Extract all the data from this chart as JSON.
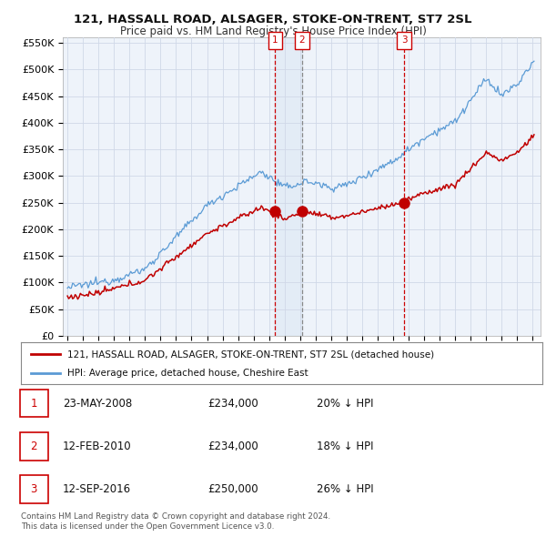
{
  "title": "121, HASSALL ROAD, ALSAGER, STOKE-ON-TRENT, ST7 2SL",
  "subtitle": "Price paid vs. HM Land Registry's House Price Index (HPI)",
  "ylim": [
    0,
    560000
  ],
  "yticks": [
    0,
    50000,
    100000,
    150000,
    200000,
    250000,
    300000,
    350000,
    400000,
    450000,
    500000,
    550000
  ],
  "ytick_labels": [
    "£0",
    "£50K",
    "£100K",
    "£150K",
    "£200K",
    "£250K",
    "£300K",
    "£350K",
    "£400K",
    "£450K",
    "£500K",
    "£550K"
  ],
  "hpi_color": "#5b9bd5",
  "price_color": "#c00000",
  "grid_color": "#d0d8e8",
  "background_color": "#ffffff",
  "chart_bg": "#eef3fa",
  "shade_color": "#d0e0f0",
  "sale_dates": [
    2008.39,
    2010.12,
    2016.71
  ],
  "sale_prices": [
    234000,
    234000,
    250000
  ],
  "sale_labels": [
    "1",
    "2",
    "3"
  ],
  "legend_entries": [
    "121, HASSALL ROAD, ALSAGER, STOKE-ON-TRENT, ST7 2SL (detached house)",
    "HPI: Average price, detached house, Cheshire East"
  ],
  "table_rows": [
    {
      "num": "1",
      "date": "23-MAY-2008",
      "price": "£234,000",
      "hpi": "20% ↓ HPI"
    },
    {
      "num": "2",
      "date": "12-FEB-2010",
      "price": "£234,000",
      "hpi": "18% ↓ HPI"
    },
    {
      "num": "3",
      "date": "12-SEP-2016",
      "price": "£250,000",
      "hpi": "26% ↓ HPI"
    }
  ],
  "footnote": "Contains HM Land Registry data © Crown copyright and database right 2024.\nThis data is licensed under the Open Government Licence v3.0.",
  "xlim_left": 1994.7,
  "xlim_right": 2025.5
}
